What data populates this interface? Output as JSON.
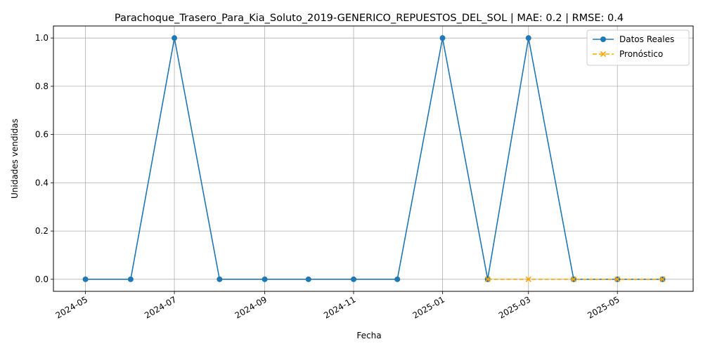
{
  "chart_data": {
    "type": "line",
    "title": "Parachoque_Trasero_Para_Kia_Soluto_2019-GENERICO_REPUESTOS_DEL_SOL | MAE: 0.2 | RMSE: 0.4",
    "xlabel": "Fecha",
    "ylabel": "Unidades vendidas",
    "ylim": [
      -0.05,
      1.05
    ],
    "xlim": [
      "2024-04-09",
      "2025-06-22"
    ],
    "grid": true,
    "legend_position": "top-right",
    "x_ticks": [
      "2024-05",
      "2024-07",
      "2024-09",
      "2024-11",
      "2025-01",
      "2025-03",
      "2025-05"
    ],
    "x_tick_dates": [
      "2024-05-01",
      "2024-07-01",
      "2024-09-01",
      "2024-11-01",
      "2025-01-01",
      "2025-03-01",
      "2025-05-01"
    ],
    "y_ticks": [
      "0.0",
      "0.2",
      "0.4",
      "0.6",
      "0.8",
      "1.0"
    ],
    "y_tick_values": [
      0,
      0.2,
      0.4,
      0.6,
      0.8,
      1.0
    ],
    "series": [
      {
        "name": "Datos Reales",
        "color": "#1f77b4",
        "marker": "circle",
        "line_style": "solid",
        "x": [
          "2024-05-01",
          "2024-06-01",
          "2024-07-01",
          "2024-08-01",
          "2024-09-01",
          "2024-10-01",
          "2024-11-01",
          "2024-12-01",
          "2025-01-01",
          "2025-02-01",
          "2025-03-01",
          "2025-04-01",
          "2025-05-01",
          "2025-06-01"
        ],
        "values": [
          0,
          0,
          1,
          0,
          0,
          0,
          0,
          0,
          1,
          0,
          1,
          0,
          0,
          0
        ]
      },
      {
        "name": "Pronóstico",
        "color": "#ffa500",
        "marker": "x",
        "line_style": "dashed",
        "x": [
          "2025-02-01",
          "2025-03-01",
          "2025-04-01",
          "2025-05-01",
          "2025-06-01"
        ],
        "values": [
          0,
          0,
          0,
          0,
          0
        ]
      }
    ]
  }
}
